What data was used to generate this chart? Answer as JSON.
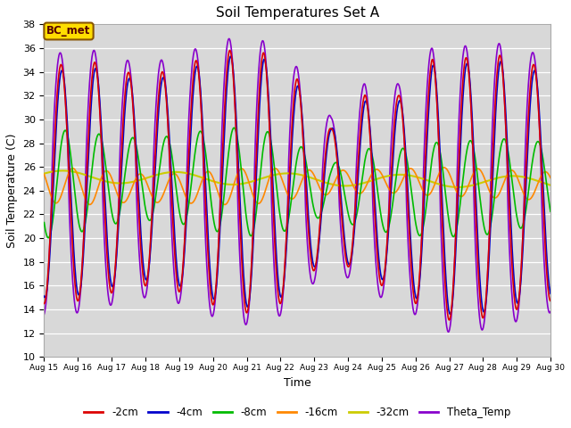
{
  "title": "Soil Temperatures Set A",
  "xlabel": "Time",
  "ylabel": "Soil Temperature (C)",
  "ylim": [
    10,
    38
  ],
  "xlim": [
    0,
    15
  ],
  "bg_color": "#d8d8d8",
  "fig_color": "#ffffff",
  "series": {
    "-2cm": {
      "color": "#dd0000",
      "lw": 1.2
    },
    "-4cm": {
      "color": "#0000cc",
      "lw": 1.2
    },
    "-8cm": {
      "color": "#00bb00",
      "lw": 1.2
    },
    "-16cm": {
      "color": "#ff8800",
      "lw": 1.2
    },
    "-32cm": {
      "color": "#cccc00",
      "lw": 1.5
    },
    "Theta_Temp": {
      "color": "#8800cc",
      "lw": 1.2
    }
  },
  "xtick_labels": [
    "Aug 15",
    "Aug 16",
    "Aug 17",
    "Aug 18",
    "Aug 19",
    "Aug 20",
    "Aug 21",
    "Aug 22",
    "Aug 23",
    "Aug 24",
    "Aug 25",
    "Aug 26",
    "Aug 27",
    "Aug 28",
    "Aug 29",
    "Aug 30"
  ],
  "annotation_text": "BC_met",
  "annotation_bg": "#ffdd00",
  "annotation_border": "#885500"
}
